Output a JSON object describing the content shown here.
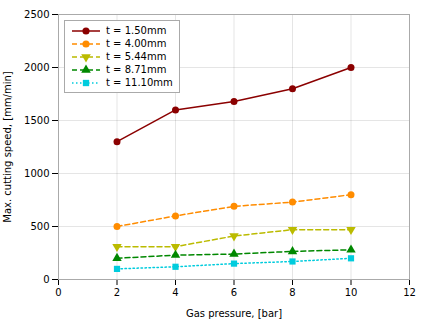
{
  "chart_data": {
    "type": "line",
    "x": [
      2,
      4,
      6,
      8,
      10
    ],
    "series": [
      {
        "name": "t = 1.50mm",
        "color": "#8B0000",
        "marker": "circle",
        "line_style": "solid",
        "values": [
          1300,
          1600,
          1680,
          1800,
          2000
        ]
      },
      {
        "name": "t = 4.00mm",
        "color": "#FF8C00",
        "marker": "circle",
        "line_style": "dashed",
        "values": [
          500,
          600,
          690,
          730,
          800
        ]
      },
      {
        "name": "t = 5.44mm",
        "color": "#BBBB00",
        "marker": "triangle-down",
        "line_style": "dashed",
        "values": [
          310,
          310,
          410,
          470,
          470
        ]
      },
      {
        "name": "t = 8.71mm",
        "color": "#008800",
        "marker": "triangle-up",
        "line_style": "dashed",
        "values": [
          200,
          230,
          240,
          265,
          280
        ]
      },
      {
        "name": "t = 11.10mm",
        "color": "#00CCDD",
        "marker": "square",
        "line_style": "dotted",
        "values": [
          100,
          120,
          150,
          170,
          200
        ]
      }
    ],
    "xlabel": "Gas pressure, [bar]",
    "ylabel": "Max. cutting speed, [mm/min]",
    "xlim": [
      0,
      12
    ],
    "ylim": [
      0,
      2500
    ],
    "xticks": [
      0,
      2,
      4,
      6,
      8,
      10,
      12
    ],
    "yticks": [
      0,
      500,
      1000,
      1500,
      2000,
      2500
    ],
    "grid": true,
    "legend": "upper left"
  }
}
